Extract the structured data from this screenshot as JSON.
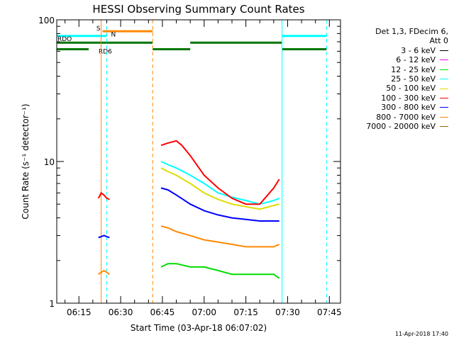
{
  "chart_data": {
    "type": "line",
    "title": "HESSI Observing Summary Count Rates",
    "xlabel": "Start Time (03-Apr-18 06:07:02)",
    "ylabel": "Count Rate (s⁻¹ detector⁻¹)",
    "yscale": "log",
    "ylim": [
      1,
      100
    ],
    "xlim": [
      "06:07:02",
      "07:49:00"
    ],
    "x_ticks": [
      "06:15",
      "06:30",
      "06:45",
      "07:00",
      "07:15",
      "07:30",
      "07:45"
    ],
    "y_ticks": [
      "1",
      "10",
      "100"
    ],
    "grid": false,
    "legend_position": "right",
    "legend_header": [
      "Det 1,3, FDecim 6,",
      "Att 0"
    ],
    "series": [
      {
        "name": "3 - 6 keV",
        "color": "#000000",
        "segments": []
      },
      {
        "name": "6 - 12 keV",
        "color": "#ff00ff",
        "segments": []
      },
      {
        "name": "12 - 25 keV",
        "color": "#00dd00",
        "segments": [
          {
            "x": [
              "06:44:30",
              "06:47",
              "06:50",
              "06:55",
              "07:00",
              "07:05",
              "07:10",
              "07:15",
              "07:20",
              "07:25",
              "07:27"
            ],
            "y": [
              1.8,
              1.9,
              1.9,
              1.8,
              1.8,
              1.7,
              1.6,
              1.6,
              1.6,
              1.6,
              1.5
            ]
          }
        ]
      },
      {
        "name": "25 - 50 keV",
        "color": "#00ffff",
        "segments": [
          {
            "x": [
              "06:44:30",
              "06:47",
              "06:50",
              "06:55",
              "07:00",
              "07:05",
              "07:10",
              "07:15",
              "07:20",
              "07:25",
              "07:27"
            ],
            "y": [
              10,
              9.5,
              9,
              8,
              7,
              6,
              5.6,
              5.3,
              5.0,
              5.3,
              5.5
            ]
          }
        ]
      },
      {
        "name": "50 - 100 keV",
        "color": "#dddd00",
        "segments": [
          {
            "x": [
              "06:44:30",
              "06:47",
              "06:50",
              "06:55",
              "07:00",
              "07:05",
              "07:10",
              "07:15",
              "07:20",
              "07:25",
              "07:27"
            ],
            "y": [
              9,
              8.5,
              8,
              7,
              6,
              5.4,
              5.0,
              4.8,
              4.6,
              4.9,
              5.0
            ]
          }
        ]
      },
      {
        "name": "100 - 300 keV",
        "color": "#ff0000",
        "segments": [
          {
            "x": [
              "06:22",
              "06:23",
              "06:24",
              "06:25",
              "06:26"
            ],
            "y": [
              5.5,
              6.0,
              5.8,
              5.5,
              5.4
            ]
          },
          {
            "x": [
              "06:44:30",
              "06:47",
              "06:50",
              "06:52",
              "06:55",
              "07:00",
              "07:05",
              "07:10",
              "07:15",
              "07:20",
              "07:25",
              "07:27"
            ],
            "y": [
              13,
              13.5,
              14,
              13,
              11,
              8,
              6.5,
              5.5,
              5.0,
              5.0,
              6.5,
              7.5
            ]
          }
        ]
      },
      {
        "name": "300 - 800 keV",
        "color": "#0000ff",
        "segments": [
          {
            "x": [
              "06:22",
              "06:24",
              "06:26"
            ],
            "y": [
              2.9,
              3.0,
              2.9
            ]
          },
          {
            "x": [
              "06:44:30",
              "06:47",
              "06:50",
              "06:55",
              "07:00",
              "07:05",
              "07:10",
              "07:15",
              "07:20",
              "07:25",
              "07:27"
            ],
            "y": [
              6.5,
              6.3,
              5.8,
              5.0,
              4.5,
              4.2,
              4.0,
              3.9,
              3.8,
              3.8,
              3.8
            ]
          }
        ]
      },
      {
        "name": "800 - 7000 keV",
        "color": "#ff8800",
        "segments": [
          {
            "x": [
              "06:22",
              "06:24",
              "06:26"
            ],
            "y": [
              1.6,
              1.7,
              1.6
            ]
          },
          {
            "x": [
              "06:44:30",
              "06:47",
              "06:50",
              "06:55",
              "07:00",
              "07:05",
              "07:10",
              "07:15",
              "07:20",
              "07:25",
              "07:27"
            ],
            "y": [
              3.5,
              3.4,
              3.2,
              3.0,
              2.8,
              2.7,
              2.6,
              2.5,
              2.5,
              2.5,
              2.6
            ]
          }
        ]
      },
      {
        "name": "7000 - 20000 keV",
        "color": "#996600",
        "segments": []
      }
    ],
    "flag_bars": [
      {
        "label": "S",
        "color": "#ff8800",
        "x_start": "06:23:30",
        "x_end": "06:41:30",
        "y": 83
      },
      {
        "label": "N",
        "color": "#00ffff",
        "x_start": "06:07:02",
        "x_end": "06:25:00",
        "y": 77
      },
      {
        "label": "",
        "color": "#00ffff",
        "x_start": "07:28:00",
        "x_end": "07:44:00",
        "y": 77
      },
      {
        "label": "RDO",
        "color": "#007700",
        "x_start": "06:07:02",
        "x_end": "06:41:30",
        "y": 69
      },
      {
        "label": "RD6",
        "color": "#007700",
        "x_start": "06:07:02",
        "x_end": "06:18:30",
        "y": 62
      },
      {
        "label": "",
        "color": "#007700",
        "x_start": "06:41:30",
        "x_end": "06:55:00",
        "y": 62
      },
      {
        "label": "",
        "color": "#007700",
        "x_start": "06:55:00",
        "x_end": "07:28:00",
        "y": 69
      },
      {
        "label": "",
        "color": "#007700",
        "x_start": "07:28:00",
        "x_end": "07:44:00",
        "y": 62
      }
    ],
    "vertical_lines": [
      {
        "x": "06:23:00",
        "color": "#ff8800",
        "style": "solid"
      },
      {
        "x": "06:25:00",
        "color": "#00ffff",
        "style": "dashed"
      },
      {
        "x": "06:41:30",
        "color": "#ff8800",
        "style": "dashed"
      },
      {
        "x": "07:28:00",
        "color": "#00ffff",
        "style": "solid"
      },
      {
        "x": "07:44:00",
        "color": "#00ffff",
        "style": "dashed"
      }
    ]
  },
  "footer": {
    "timestamp": "11-Apr-2018 17:40"
  }
}
